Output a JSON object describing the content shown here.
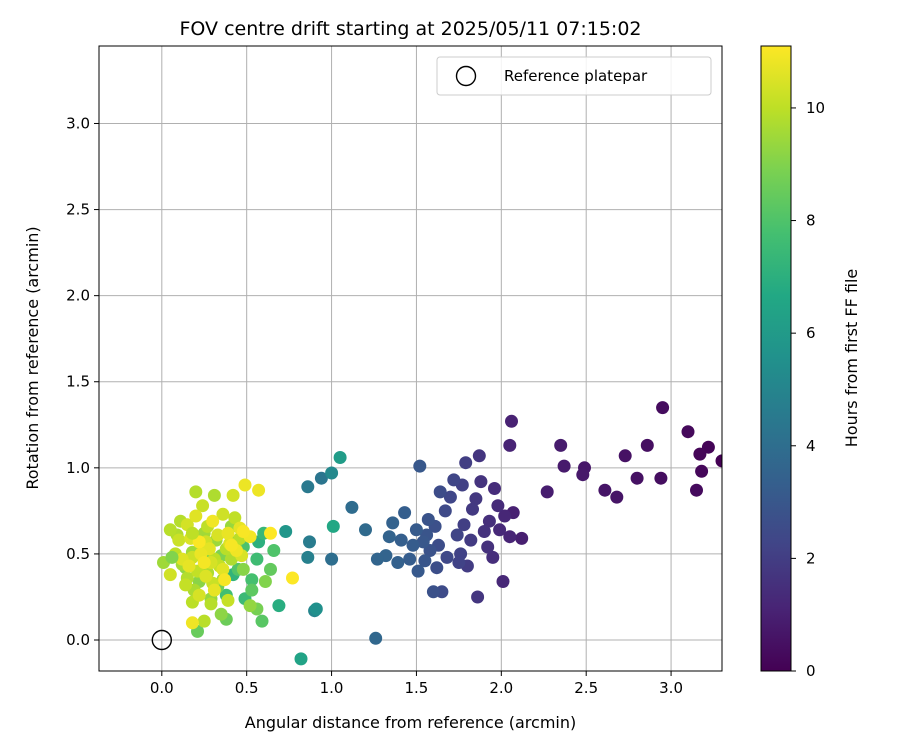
{
  "chart_data": {
    "type": "scatter",
    "title": "FOV centre drift starting at 2025/05/11 07:15:02",
    "xlabel": "Angular distance from reference (arcmin)",
    "ylabel": "Rotation from reference (arcmin)",
    "xlim": [
      -0.37,
      3.3
    ],
    "ylim": [
      -0.18,
      3.45
    ],
    "xticks": [
      0.0,
      0.5,
      1.0,
      1.5,
      2.0,
      2.5,
      3.0
    ],
    "xtick_labels": [
      "0.0",
      "0.5",
      "1.0",
      "1.5",
      "2.0",
      "2.5",
      "3.0"
    ],
    "yticks": [
      0.0,
      0.5,
      1.0,
      1.5,
      2.0,
      2.5,
      3.0
    ],
    "ytick_labels": [
      "0.0",
      "0.5",
      "1.0",
      "1.5",
      "2.0",
      "2.5",
      "3.0"
    ],
    "grid": true,
    "colormap": "viridis",
    "colorbar": {
      "label": "Hours from first FF file",
      "range": [
        0,
        11.1
      ],
      "ticks": [
        0,
        2,
        4,
        6,
        8,
        10
      ],
      "tick_labels": [
        "0",
        "2",
        "4",
        "6",
        "8",
        "10"
      ]
    },
    "legend": {
      "position": "top-right",
      "entries": [
        "Reference platepar"
      ]
    },
    "reference_point": {
      "x": 0.0,
      "y": 0.0,
      "label": "Reference platepar"
    },
    "points": [
      [
        3.3,
        1.04,
        0.0
      ],
      [
        3.22,
        1.12,
        0.1
      ],
      [
        3.17,
        1.08,
        0.15
      ],
      [
        3.18,
        0.98,
        0.2
      ],
      [
        3.1,
        1.21,
        0.25
      ],
      [
        3.15,
        0.87,
        0.3
      ],
      [
        2.95,
        1.35,
        0.35
      ],
      [
        2.94,
        0.94,
        0.4
      ],
      [
        2.86,
        1.13,
        0.45
      ],
      [
        2.8,
        0.94,
        0.5
      ],
      [
        2.73,
        1.07,
        0.55
      ],
      [
        2.68,
        0.83,
        0.6
      ],
      [
        2.61,
        0.87,
        0.65
      ],
      [
        2.49,
        1.0,
        0.7
      ],
      [
        2.48,
        0.96,
        0.75
      ],
      [
        2.37,
        1.01,
        0.8
      ],
      [
        2.35,
        1.13,
        0.85
      ],
      [
        2.27,
        0.86,
        0.9
      ],
      [
        2.12,
        0.59,
        0.95
      ],
      [
        2.07,
        0.74,
        1.0
      ],
      [
        2.06,
        1.27,
        1.05
      ],
      [
        2.05,
        1.13,
        1.1
      ],
      [
        2.05,
        0.6,
        1.15
      ],
      [
        2.02,
        0.72,
        1.2
      ],
      [
        2.01,
        0.34,
        1.25
      ],
      [
        1.99,
        0.64,
        1.3
      ],
      [
        1.98,
        0.78,
        1.35
      ],
      [
        1.96,
        0.88,
        1.4
      ],
      [
        1.95,
        0.48,
        1.45
      ],
      [
        1.93,
        0.69,
        1.5
      ],
      [
        1.92,
        0.54,
        1.55
      ],
      [
        1.9,
        0.63,
        1.6
      ],
      [
        1.88,
        0.92,
        1.65
      ],
      [
        1.87,
        1.07,
        1.7
      ],
      [
        1.86,
        0.25,
        1.75
      ],
      [
        1.85,
        0.82,
        1.8
      ],
      [
        1.83,
        0.76,
        1.85
      ],
      [
        1.82,
        0.58,
        1.9
      ],
      [
        1.8,
        0.43,
        1.95
      ],
      [
        1.79,
        1.03,
        2.0
      ],
      [
        1.78,
        0.67,
        2.05
      ],
      [
        1.77,
        0.9,
        2.1
      ],
      [
        1.76,
        0.5,
        2.15
      ],
      [
        1.75,
        0.45,
        2.2
      ],
      [
        1.74,
        0.61,
        2.25
      ],
      [
        1.72,
        0.93,
        2.3
      ],
      [
        1.7,
        0.83,
        2.35
      ],
      [
        1.68,
        0.48,
        2.4
      ],
      [
        1.67,
        0.75,
        2.45
      ],
      [
        1.65,
        0.28,
        2.5
      ],
      [
        1.64,
        0.86,
        2.55
      ],
      [
        1.63,
        0.55,
        2.6
      ],
      [
        1.62,
        0.42,
        2.65
      ],
      [
        1.61,
        0.66,
        2.7
      ],
      [
        1.6,
        0.28,
        2.75
      ],
      [
        1.58,
        0.52,
        2.8
      ],
      [
        1.57,
        0.7,
        2.85
      ],
      [
        1.56,
        0.61,
        2.9
      ],
      [
        1.55,
        0.46,
        2.95
      ],
      [
        1.54,
        0.57,
        3.0
      ],
      [
        1.52,
        1.01,
        3.05
      ],
      [
        1.51,
        0.4,
        3.1
      ],
      [
        1.5,
        0.64,
        3.15
      ],
      [
        1.48,
        0.55,
        3.2
      ],
      [
        1.46,
        0.47,
        3.25
      ],
      [
        1.43,
        0.74,
        3.3
      ],
      [
        1.41,
        0.58,
        3.35
      ],
      [
        1.39,
        0.45,
        3.4
      ],
      [
        1.36,
        0.68,
        3.45
      ],
      [
        1.34,
        0.6,
        3.5
      ],
      [
        1.32,
        0.49,
        3.55
      ],
      [
        1.27,
        0.47,
        3.6
      ],
      [
        1.26,
        0.01,
        3.7
      ],
      [
        1.2,
        0.64,
        3.8
      ],
      [
        1.12,
        0.77,
        3.9
      ],
      [
        1.0,
        0.47,
        4.0
      ],
      [
        0.94,
        0.94,
        4.3
      ],
      [
        0.86,
        0.89,
        4.5
      ],
      [
        0.87,
        0.57,
        4.6
      ],
      [
        0.86,
        0.48,
        4.8
      ],
      [
        0.9,
        0.17,
        5.0
      ],
      [
        1.0,
        0.97,
        5.2
      ],
      [
        0.91,
        0.18,
        5.5
      ],
      [
        0.73,
        0.63,
        5.8
      ],
      [
        1.05,
        1.06,
        6.1
      ],
      [
        0.82,
        -0.11,
        6.4
      ],
      [
        1.01,
        0.66,
        6.6
      ],
      [
        0.69,
        0.2,
        6.9
      ],
      [
        0.57,
        0.57,
        7.0
      ],
      [
        0.42,
        0.38,
        7.2
      ],
      [
        0.6,
        0.62,
        7.4
      ],
      [
        0.49,
        0.24,
        7.5
      ],
      [
        0.56,
        0.47,
        7.6
      ],
      [
        0.38,
        0.26,
        7.7
      ],
      [
        0.53,
        0.35,
        7.8
      ],
      [
        0.48,
        0.54,
        7.9
      ],
      [
        0.66,
        0.52,
        8.0
      ],
      [
        0.45,
        0.41,
        8.1
      ],
      [
        0.59,
        0.11,
        8.2
      ],
      [
        0.53,
        0.29,
        8.3
      ],
      [
        0.64,
        0.41,
        8.4
      ],
      [
        0.21,
        0.05,
        8.5
      ],
      [
        0.38,
        0.12,
        8.6
      ],
      [
        0.33,
        0.31,
        8.7
      ],
      [
        0.56,
        0.18,
        8.8
      ],
      [
        0.44,
        0.57,
        8.9
      ],
      [
        0.35,
        0.49,
        8.95
      ],
      [
        0.61,
        0.34,
        9.0
      ],
      [
        0.27,
        0.46,
        9.05
      ],
      [
        0.48,
        0.41,
        9.1
      ],
      [
        0.22,
        0.34,
        9.15
      ],
      [
        0.35,
        0.15,
        9.2
      ],
      [
        0.14,
        0.42,
        9.25
      ],
      [
        0.52,
        0.2,
        9.3
      ],
      [
        0.29,
        0.24,
        9.35
      ],
      [
        0.41,
        0.66,
        9.4
      ],
      [
        0.32,
        0.58,
        9.45
      ],
      [
        0.18,
        0.51,
        9.5
      ],
      [
        0.25,
        0.62,
        9.55
      ],
      [
        0.36,
        0.35,
        9.6
      ],
      [
        0.12,
        0.44,
        9.65
      ],
      [
        0.19,
        0.29,
        9.7
      ],
      [
        0.27,
        0.39,
        9.72
      ],
      [
        0.31,
        0.84,
        9.74
      ],
      [
        0.41,
        0.47,
        9.76
      ],
      [
        0.09,
        0.61,
        9.78
      ],
      [
        0.23,
        0.56,
        9.8
      ],
      [
        0.15,
        0.36,
        9.82
      ],
      [
        0.2,
        0.86,
        9.84
      ],
      [
        0.11,
        0.69,
        9.86
      ],
      [
        0.29,
        0.21,
        9.88
      ],
      [
        0.38,
        0.53,
        9.9
      ],
      [
        0.25,
        0.11,
        9.92
      ],
      [
        0.46,
        0.59,
        9.94
      ],
      [
        0.18,
        0.22,
        9.96
      ],
      [
        0.31,
        0.47,
        9.98
      ],
      [
        0.08,
        0.5,
        10.0
      ],
      [
        0.27,
        0.66,
        10.02
      ],
      [
        0.43,
        0.71,
        10.05
      ],
      [
        0.21,
        0.4,
        10.08
      ],
      [
        0.34,
        0.43,
        10.1
      ],
      [
        0.14,
        0.32,
        10.12
      ],
      [
        0.39,
        0.23,
        10.15
      ],
      [
        0.24,
        0.78,
        10.18
      ],
      [
        0.3,
        0.33,
        10.2
      ],
      [
        0.1,
        0.58,
        10.22
      ],
      [
        0.18,
        0.48,
        10.25
      ],
      [
        0.36,
        0.73,
        10.28
      ],
      [
        0.26,
        0.57,
        10.3
      ],
      [
        0.05,
        0.38,
        10.32
      ],
      [
        0.42,
        0.84,
        10.35
      ],
      [
        0.15,
        0.67,
        10.38
      ],
      [
        0.29,
        0.45,
        10.4
      ],
      [
        0.22,
        0.26,
        10.42
      ],
      [
        0.33,
        0.61,
        10.45
      ],
      [
        0.47,
        0.49,
        10.48
      ],
      [
        0.17,
        0.59,
        10.5
      ],
      [
        0.26,
        0.37,
        10.52
      ],
      [
        0.4,
        0.56,
        10.55
      ],
      [
        0.12,
        0.47,
        10.58
      ],
      [
        0.2,
        0.72,
        10.6
      ],
      [
        0.36,
        0.41,
        10.62
      ],
      [
        0.28,
        0.53,
        10.65
      ],
      [
        0.46,
        0.65,
        10.68
      ],
      [
        0.16,
        0.43,
        10.7
      ],
      [
        0.31,
        0.29,
        10.72
      ],
      [
        0.39,
        0.62,
        10.75
      ],
      [
        0.23,
        0.5,
        10.78
      ],
      [
        0.49,
        0.9,
        10.8
      ],
      [
        0.57,
        0.87,
        10.82
      ],
      [
        0.18,
        0.1,
        10.85
      ],
      [
        0.44,
        0.52,
        10.88
      ],
      [
        0.3,
        0.69,
        10.9
      ],
      [
        0.52,
        0.6,
        10.92
      ],
      [
        0.25,
        0.45,
        10.95
      ],
      [
        0.41,
        0.55,
        10.98
      ],
      [
        0.37,
        0.35,
        11.0
      ],
      [
        0.48,
        0.63,
        11.02
      ],
      [
        0.22,
        0.57,
        11.05
      ],
      [
        0.77,
        0.36,
        11.08
      ],
      [
        0.64,
        0.62,
        11.1
      ],
      [
        0.05,
        0.64,
        9.9
      ],
      [
        0.18,
        0.62,
        10.0
      ],
      [
        0.01,
        0.45,
        9.5
      ],
      [
        0.06,
        0.48,
        9.0
      ]
    ]
  }
}
